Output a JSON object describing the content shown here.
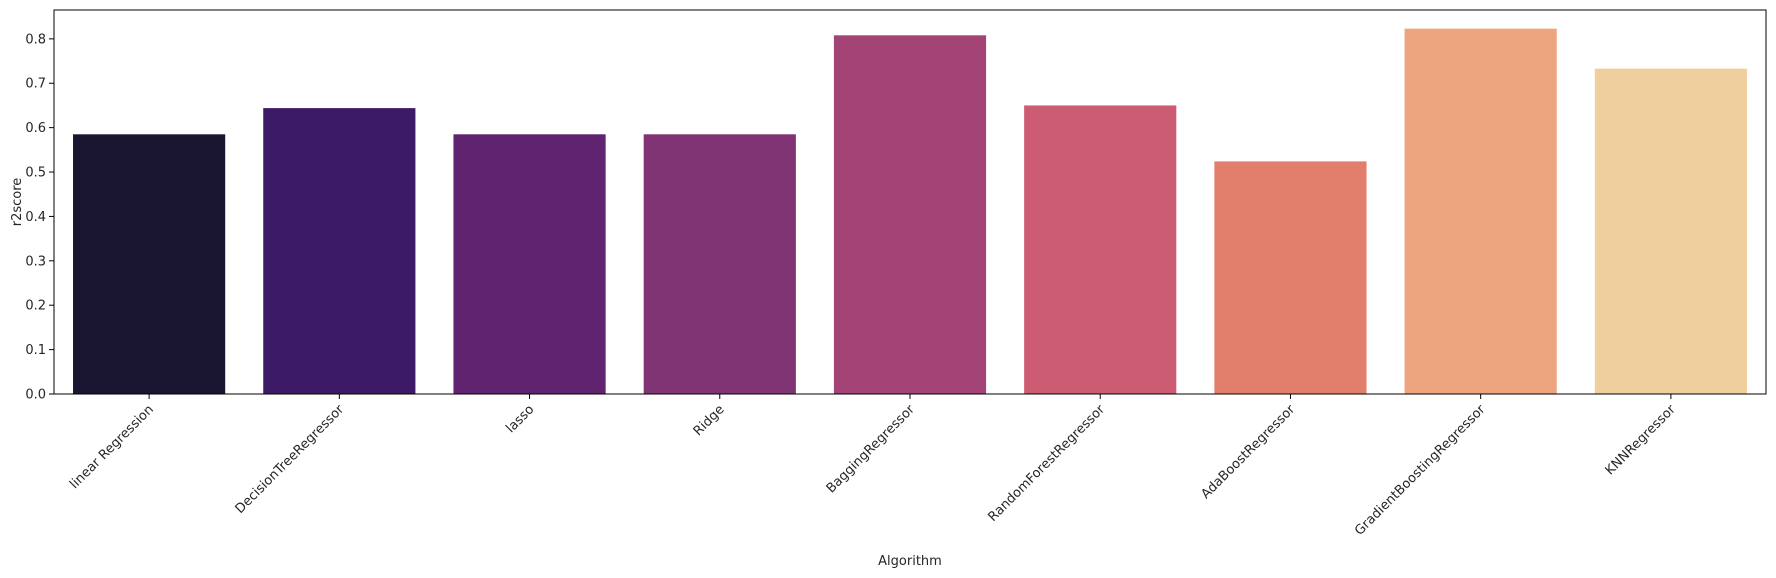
{
  "chart_data": {
    "type": "bar",
    "title": "",
    "xlabel": "Algorithm",
    "ylabel": "r2score",
    "categories": [
      "linear Regression",
      "DecisionTreeRegressor",
      "lasso",
      "Ridge",
      "BaggingRegressor",
      "RandomForestRegressor",
      "AdaBoostRegressor",
      "GradientBoostingRegressor",
      "KNNRegressor"
    ],
    "values": [
      0.585,
      0.644,
      0.585,
      0.585,
      0.808,
      0.65,
      0.524,
      0.823,
      0.733
    ],
    "colors": [
      "#1a1530",
      "#3d1a66",
      "#5f2370",
      "#803474",
      "#a44476",
      "#cc5c72",
      "#e27f6c",
      "#eca57e",
      "#f0cf9e"
    ],
    "ylim": [
      0,
      0.865
    ],
    "yticks": [
      0.0,
      0.1,
      0.2,
      0.3,
      0.4,
      0.5,
      0.6,
      0.7,
      0.8
    ],
    "ytick_labels": [
      "0.0",
      "0.1",
      "0.2",
      "0.3",
      "0.4",
      "0.5",
      "0.6",
      "0.7",
      "0.8"
    ],
    "grid": false,
    "xtick_rotation_deg": -45
  }
}
